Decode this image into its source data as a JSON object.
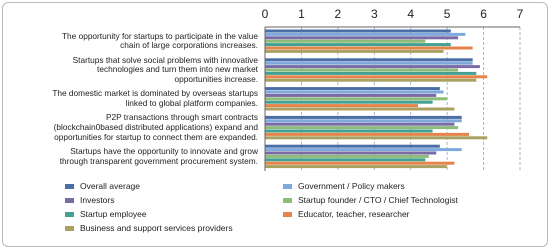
{
  "chart_data": {
    "type": "bar",
    "orientation": "horizontal",
    "categories": [
      "The opportunity for startups to participate in the value\nchain of large corporations increases.",
      "Startups that solve social problems with innovative\ntechnologies and turn them into new market\nopportunities increase.",
      "The domestic market is dominated by overseas startups\nlinked to global platform companies.",
      "P2P transactions through smart contracts\n(blockchain0based distributed applications) expand and\nopportunities for startup to connect them are expanded.",
      "Startups have the opportunity to innovate and grow\nthrough transparent government procurement system."
    ],
    "series": [
      {
        "name": "Overall average",
        "color": "#4b6ea8",
        "values": [
          5.1,
          5.7,
          4.8,
          5.4,
          4.8
        ]
      },
      {
        "name": "Government / Policy makers",
        "color": "#7fa9da",
        "values": [
          5.5,
          5.7,
          4.9,
          5.4,
          5.4
        ]
      },
      {
        "name": "Investors",
        "color": "#7a6aa6",
        "values": [
          5.3,
          5.9,
          4.7,
          5.2,
          4.7
        ]
      },
      {
        "name": "Startup founder / CTO / Chief Technologist",
        "color": "#8cbc78",
        "values": [
          4.4,
          5.3,
          5.0,
          5.3,
          4.5
        ]
      },
      {
        "name": "Startup employee",
        "color": "#43a092",
        "values": [
          5.1,
          5.8,
          4.6,
          4.6,
          4.4
        ]
      },
      {
        "name": "Educator, teacher, researcher",
        "color": "#e4834a",
        "values": [
          5.7,
          6.1,
          4.2,
          5.6,
          5.2
        ]
      },
      {
        "name": "Business and support services providers",
        "color": "#a9a062",
        "values": [
          4.9,
          5.8,
          5.2,
          6.1,
          5.0
        ]
      }
    ],
    "xlim": [
      0,
      7
    ],
    "xticks": [
      0,
      1,
      2,
      3,
      4,
      5,
      6,
      7
    ],
    "grid": true
  }
}
